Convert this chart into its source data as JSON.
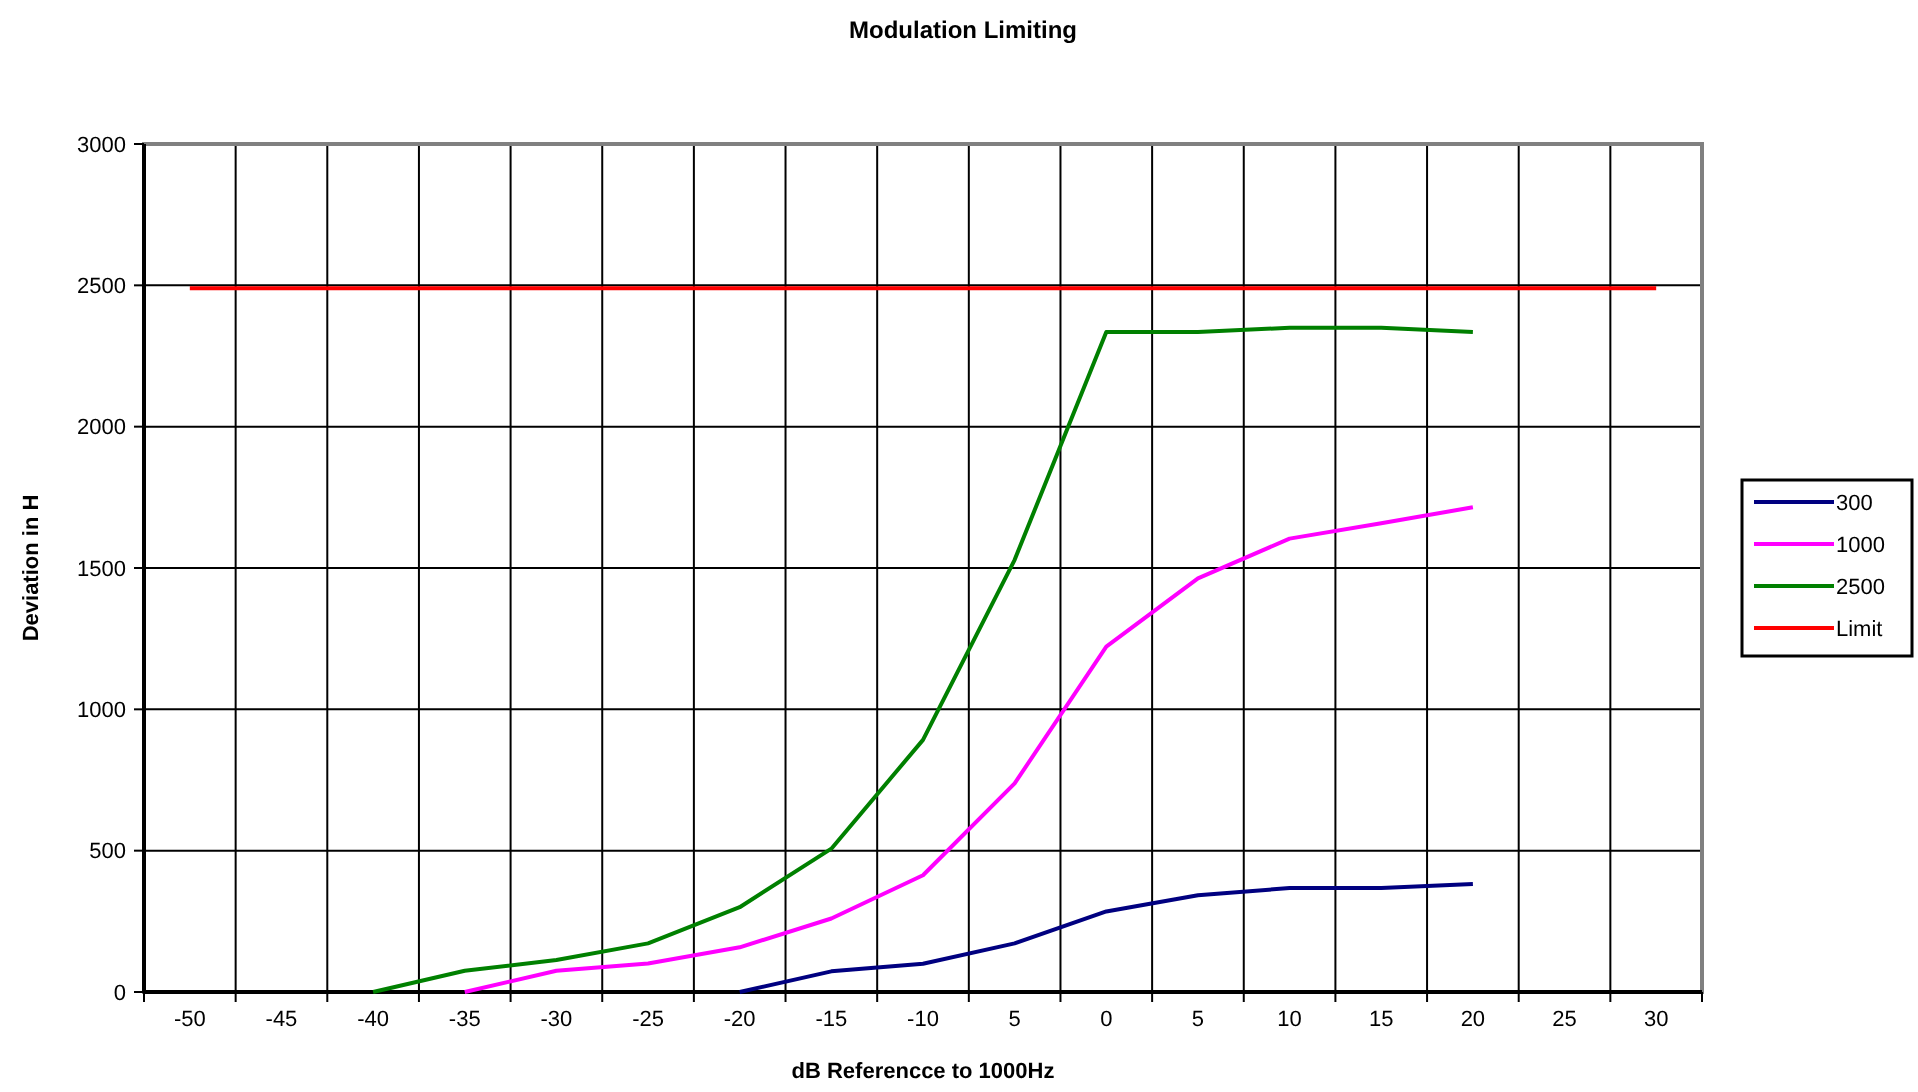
{
  "chart_data": {
    "type": "line",
    "title": "Modulation Limiting",
    "xlabel": "dB Referencce to 1000Hz",
    "ylabel": "Deviation in H",
    "categories": [
      "-50",
      "-45",
      "-40",
      "-35",
      "-30",
      "-25",
      "-20",
      "-15",
      "-10",
      "5",
      "0",
      "5",
      "10",
      "15",
      "20",
      "25",
      "30"
    ],
    "series": [
      {
        "name": "300",
        "color": "#000080",
        "values": [
          null,
          null,
          null,
          null,
          null,
          null,
          0,
          73,
          100,
          172,
          285,
          342,
          368,
          368,
          382,
          null,
          null
        ]
      },
      {
        "name": "1000",
        "color": "#ff00ff",
        "values": [
          null,
          null,
          null,
          0,
          75,
          101,
          158,
          260,
          413,
          738,
          1222,
          1463,
          1604,
          1658,
          1715,
          null,
          null
        ]
      },
      {
        "name": "2500",
        "color": "#008000",
        "values": [
          null,
          null,
          0,
          75,
          113,
          172,
          300,
          507,
          892,
          1529,
          2335,
          2335,
          2350,
          2350,
          2335,
          null,
          null
        ]
      },
      {
        "name": "Limit",
        "color": "#ff0000",
        "values": [
          2490,
          2490,
          2490,
          2490,
          2490,
          2490,
          2490,
          2490,
          2490,
          2490,
          2490,
          2490,
          2490,
          2490,
          2490,
          2490,
          2490
        ]
      }
    ],
    "ylim": [
      0,
      3000
    ],
    "yticks": [
      0,
      500,
      1000,
      1500,
      2000,
      2500,
      3000
    ],
    "grid": true,
    "legend": "right",
    "marker": "none",
    "line_style": "solid"
  }
}
